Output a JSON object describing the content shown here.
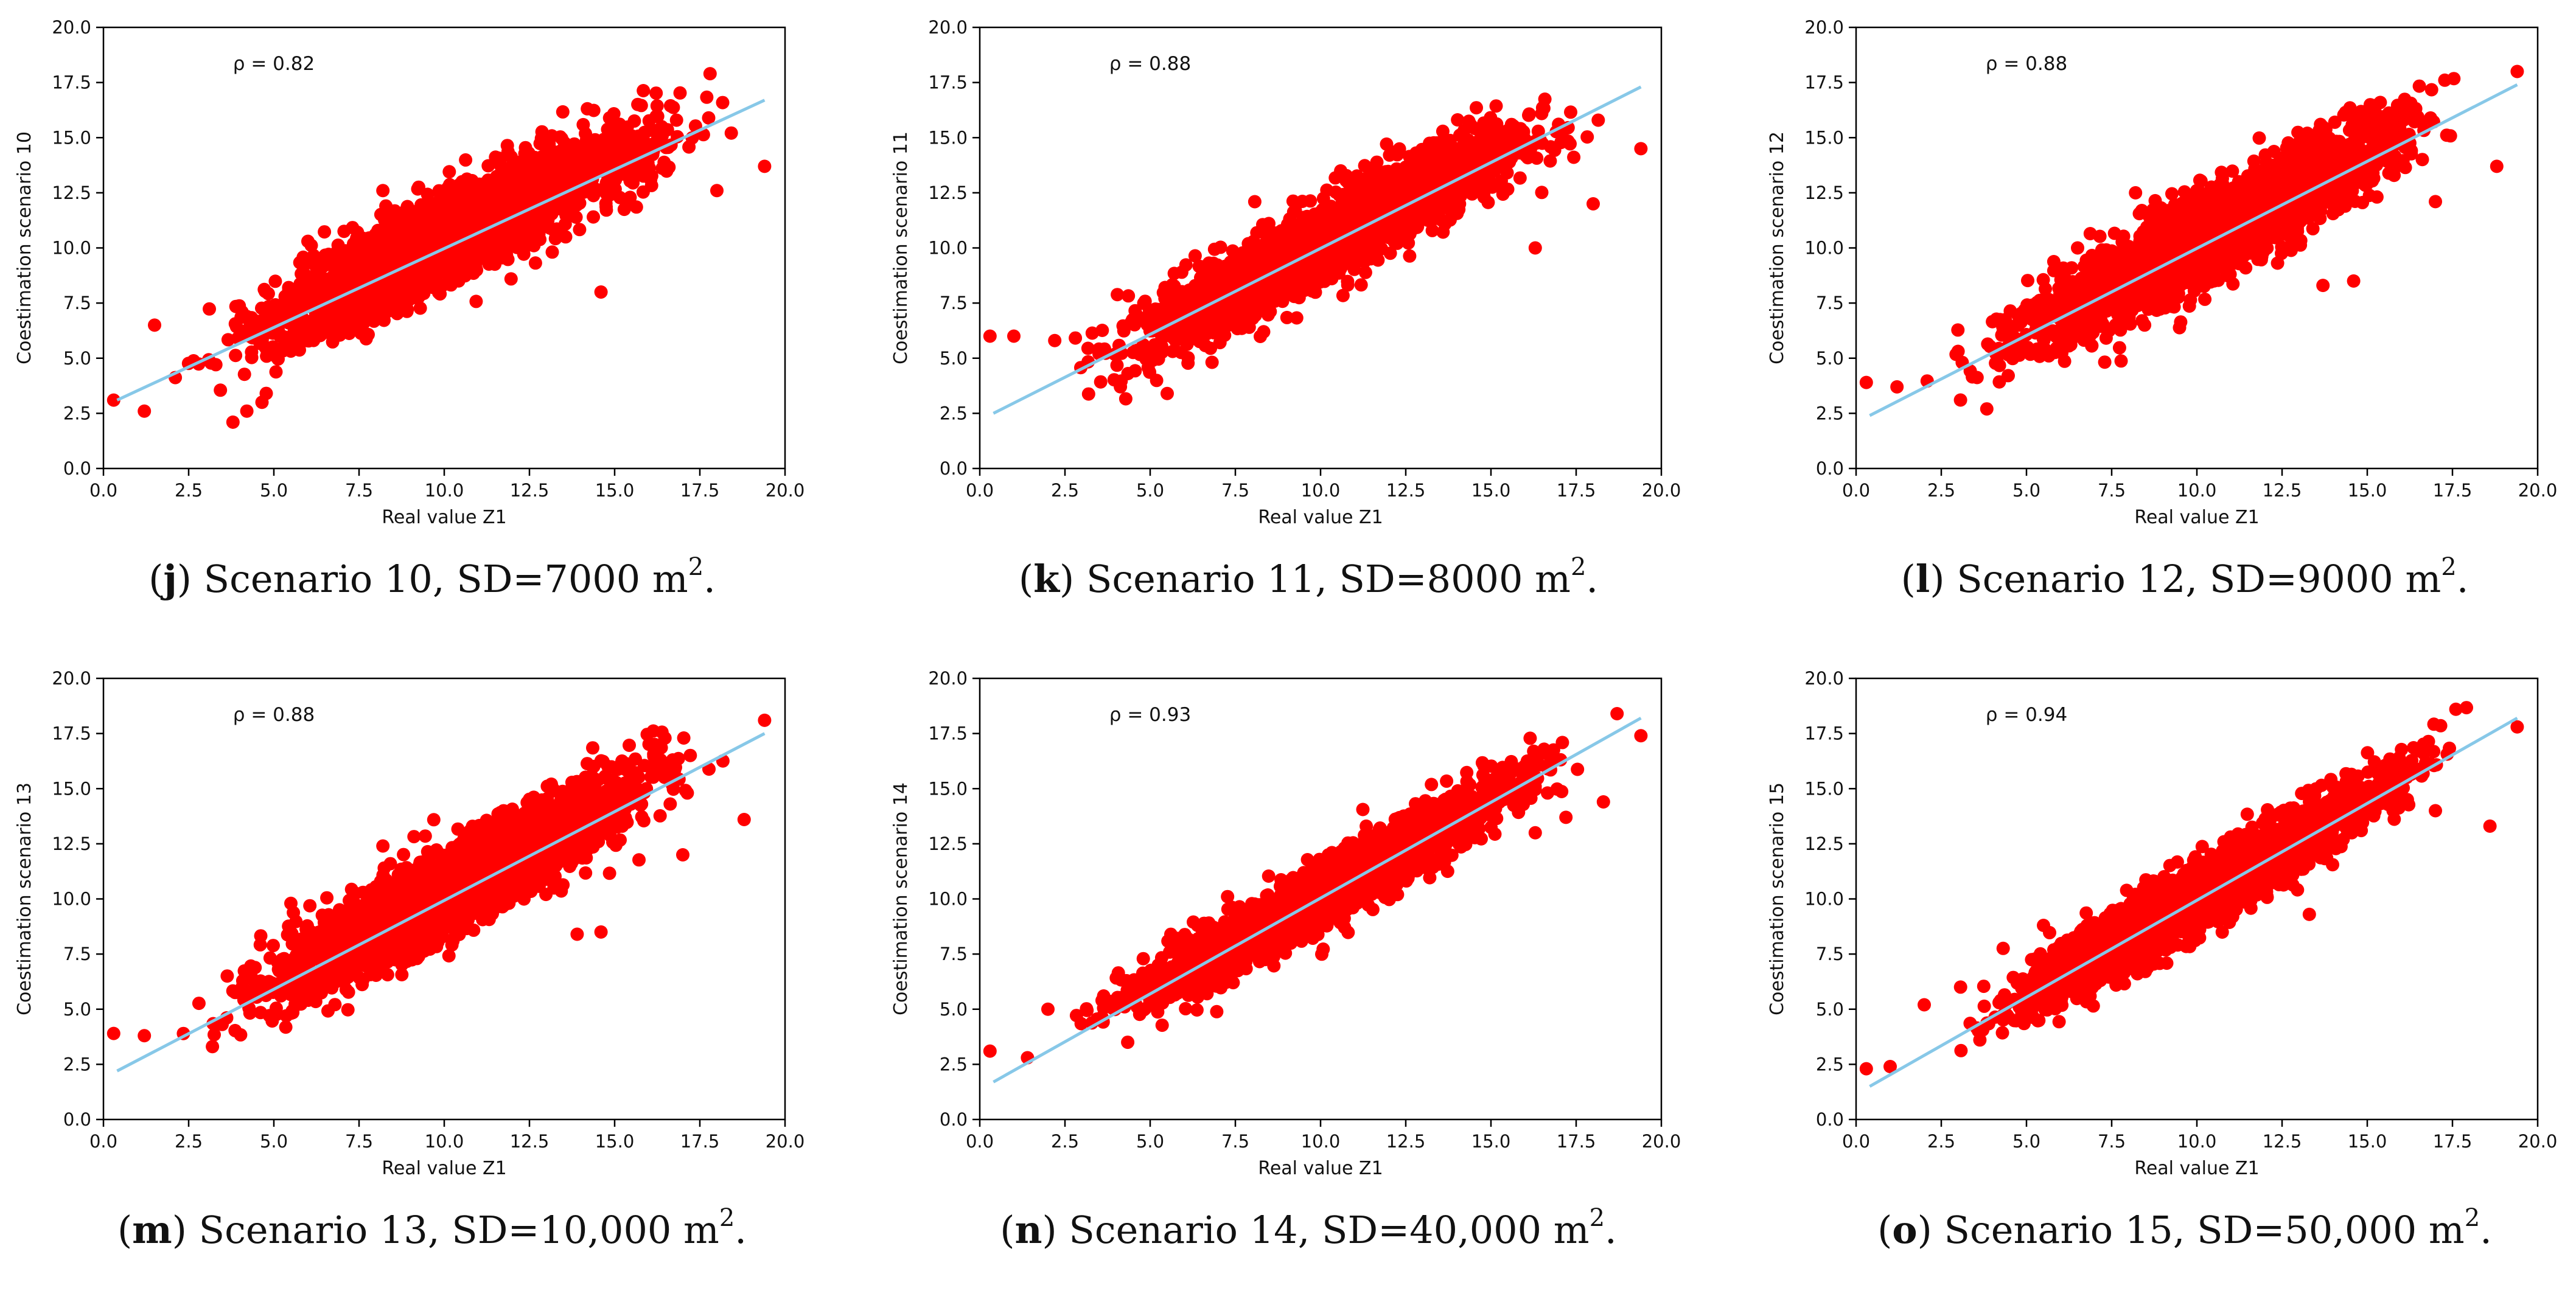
{
  "figure_type": "scatter_grid",
  "colors": {
    "points": "#ff0000",
    "fit_line": "#87c8e8",
    "axes": "#000000"
  },
  "chart_data": [
    {
      "id": "j",
      "type": "scatter",
      "scenario": 10,
      "rho": 0.82,
      "rho_text": "ρ = 0.82",
      "caption": {
        "letter": "j",
        "text_before": ") Scenario 10, SD=7000 m",
        "superscript": "2",
        "text_after": "."
      },
      "xlabel": "Real value Z1",
      "ylabel": "Coestimation scenario 10",
      "xlim": [
        0,
        20
      ],
      "ylim": [
        0,
        20
      ],
      "xticks": [
        "0.0",
        "2.5",
        "5.0",
        "7.5",
        "10.0",
        "12.5",
        "15.0",
        "17.5",
        "20.0"
      ],
      "yticks": [
        "0.0",
        "2.5",
        "5.0",
        "7.5",
        "10.0",
        "12.5",
        "15.0",
        "17.5",
        "20.0"
      ],
      "fit_line": {
        "x": [
          0.4,
          19.4
        ],
        "y": [
          3.1,
          16.7
        ]
      },
      "cloud": [
        [
          1.0,
          3.1
        ],
        [
          2.5,
          4.7
        ],
        [
          5.0,
          6.7
        ],
        [
          7.5,
          8.6
        ],
        [
          10.0,
          10.4
        ],
        [
          12.5,
          12.2
        ],
        [
          15.0,
          14.0
        ],
        [
          17.5,
          15.3
        ],
        [
          19.3,
          14.7
        ]
      ],
      "spread": 1.8,
      "outliers": [
        [
          0.3,
          3.1
        ],
        [
          1.2,
          2.6
        ],
        [
          1.5,
          6.5
        ],
        [
          3.8,
          2.1
        ],
        [
          8.2,
          12.6
        ],
        [
          14.6,
          8.0
        ],
        [
          17.8,
          17.9
        ],
        [
          19.4,
          13.7
        ],
        [
          18.0,
          12.6
        ],
        [
          6.0,
          10.3
        ]
      ]
    },
    {
      "id": "k",
      "type": "scatter",
      "scenario": 11,
      "rho": 0.88,
      "rho_text": "ρ = 0.88",
      "caption": {
        "letter": "k",
        "text_before": ") Scenario 11, SD=8000 m",
        "superscript": "2",
        "text_after": "."
      },
      "xlabel": "Real value Z1",
      "ylabel": "Coestimation scenario 11",
      "xlim": [
        0,
        20
      ],
      "ylim": [
        0,
        20
      ],
      "xticks": [
        "0.0",
        "2.5",
        "5.0",
        "7.5",
        "10.0",
        "12.5",
        "15.0",
        "17.5",
        "20.0"
      ],
      "yticks": [
        "0.0",
        "2.5",
        "5.0",
        "7.5",
        "10.0",
        "12.5",
        "15.0",
        "17.5",
        "20.0"
      ],
      "fit_line": {
        "x": [
          0.4,
          19.4
        ],
        "y": [
          2.5,
          17.3
        ]
      },
      "cloud": [
        [
          1.5,
          5.6
        ],
        [
          3.0,
          5.3
        ],
        [
          5.0,
          6.3
        ],
        [
          7.5,
          8.1
        ],
        [
          10.0,
          10.2
        ],
        [
          12.5,
          12.2
        ],
        [
          15.0,
          14.0
        ],
        [
          17.5,
          15.6
        ],
        [
          19.2,
          15.0
        ]
      ],
      "spread": 1.6,
      "outliers": [
        [
          0.3,
          6.0
        ],
        [
          1.0,
          6.0
        ],
        [
          2.2,
          5.8
        ],
        [
          3.5,
          5.2
        ],
        [
          19.4,
          14.5
        ],
        [
          16.3,
          10.0
        ],
        [
          18.0,
          12.0
        ],
        [
          5.5,
          3.4
        ]
      ]
    },
    {
      "id": "l",
      "type": "scatter",
      "scenario": 12,
      "rho": 0.88,
      "rho_text": "ρ = 0.88",
      "caption": {
        "letter": "l",
        "text_before": ") Scenario 12, SD=9000 m",
        "superscript": "2",
        "text_after": "."
      },
      "xlabel": "Real value Z1",
      "ylabel": "Coestimation scenario 12",
      "xlim": [
        0,
        20
      ],
      "ylim": [
        0,
        20
      ],
      "xticks": [
        "0.0",
        "2.5",
        "5.0",
        "7.5",
        "10.0",
        "12.5",
        "15.0",
        "17.5",
        "20.0"
      ],
      "yticks": [
        "0.0",
        "2.5",
        "5.0",
        "7.5",
        "10.0",
        "12.5",
        "15.0",
        "17.5",
        "20.0"
      ],
      "fit_line": {
        "x": [
          0.4,
          19.4
        ],
        "y": [
          2.4,
          17.4
        ]
      },
      "cloud": [
        [
          1.5,
          3.8
        ],
        [
          3.0,
          4.8
        ],
        [
          5.0,
          6.3
        ],
        [
          7.5,
          8.3
        ],
        [
          10.0,
          10.3
        ],
        [
          12.5,
          12.4
        ],
        [
          15.0,
          14.5
        ],
        [
          17.5,
          16.5
        ],
        [
          19.2,
          17.3
        ]
      ],
      "spread": 1.8,
      "outliers": [
        [
          0.3,
          3.9
        ],
        [
          1.2,
          3.7
        ],
        [
          8.2,
          12.5
        ],
        [
          14.6,
          8.5
        ],
        [
          13.7,
          8.3
        ],
        [
          19.4,
          18.0
        ],
        [
          18.8,
          13.7
        ],
        [
          17.0,
          12.1
        ],
        [
          6.5,
          10.0
        ]
      ]
    },
    {
      "id": "m",
      "type": "scatter",
      "scenario": 13,
      "rho": 0.88,
      "rho_text": "ρ = 0.88",
      "caption": {
        "letter": "m",
        "text_before": ") Scenario 13, SD=10,000 m",
        "superscript": "2",
        "text_after": "."
      },
      "xlabel": "Real value Z1",
      "ylabel": "Coestimation scenario 13",
      "xlim": [
        0,
        20
      ],
      "ylim": [
        0,
        20
      ],
      "xticks": [
        "0.0",
        "2.5",
        "5.0",
        "7.5",
        "10.0",
        "12.5",
        "15.0",
        "17.5",
        "20.0"
      ],
      "yticks": [
        "0.0",
        "2.5",
        "5.0",
        "7.5",
        "10.0",
        "12.5",
        "15.0",
        "17.5",
        "20.0"
      ],
      "fit_line": {
        "x": [
          0.4,
          19.4
        ],
        "y": [
          2.2,
          17.5
        ]
      },
      "cloud": [
        [
          1.5,
          3.9
        ],
        [
          3.0,
          4.8
        ],
        [
          5.0,
          6.2
        ],
        [
          7.5,
          8.2
        ],
        [
          10.0,
          10.2
        ],
        [
          12.5,
          12.3
        ],
        [
          15.0,
          14.5
        ],
        [
          17.5,
          16.5
        ],
        [
          19.2,
          17.4
        ]
      ],
      "spread": 1.8,
      "outliers": [
        [
          0.3,
          3.9
        ],
        [
          1.2,
          3.8
        ],
        [
          8.2,
          12.4
        ],
        [
          14.6,
          8.5
        ],
        [
          13.9,
          8.4
        ],
        [
          19.4,
          18.1
        ],
        [
          18.8,
          13.6
        ],
        [
          17.0,
          12.0
        ],
        [
          5.5,
          9.8
        ]
      ]
    },
    {
      "id": "n",
      "type": "scatter",
      "scenario": 14,
      "rho": 0.93,
      "rho_text": "ρ = 0.93",
      "caption": {
        "letter": "n",
        "text_before": ") Scenario 14, SD=40,000 m",
        "superscript": "2",
        "text_after": "."
      },
      "xlabel": "Real value Z1",
      "ylabel": "Coestimation scenario 14",
      "xlim": [
        0,
        20
      ],
      "ylim": [
        0,
        20
      ],
      "xticks": [
        "0.0",
        "2.5",
        "5.0",
        "7.5",
        "10.0",
        "12.5",
        "15.0",
        "17.5",
        "20.0"
      ],
      "yticks": [
        "0.0",
        "2.5",
        "5.0",
        "7.5",
        "10.0",
        "12.5",
        "15.0",
        "17.5",
        "20.0"
      ],
      "fit_line": {
        "x": [
          0.4,
          19.4
        ],
        "y": [
          1.7,
          18.2
        ]
      },
      "cloud": [
        [
          1.5,
          3.3
        ],
        [
          3.0,
          4.2
        ],
        [
          5.0,
          5.9
        ],
        [
          7.5,
          8.0
        ],
        [
          10.0,
          10.2
        ],
        [
          12.5,
          12.4
        ],
        [
          15.0,
          14.6
        ],
        [
          17.5,
          16.7
        ],
        [
          19.2,
          17.6
        ]
      ],
      "spread": 1.3,
      "outliers": [
        [
          0.3,
          3.1
        ],
        [
          1.4,
          2.8
        ],
        [
          2.0,
          5.0
        ],
        [
          19.4,
          17.4
        ],
        [
          18.7,
          18.4
        ],
        [
          18.3,
          14.4
        ],
        [
          17.2,
          13.7
        ],
        [
          16.3,
          13.0
        ],
        [
          6.0,
          7.6
        ]
      ]
    },
    {
      "id": "o",
      "type": "scatter",
      "scenario": 15,
      "rho": 0.94,
      "rho_text": "ρ = 0.94",
      "caption": {
        "letter": "o",
        "text_before": ") Scenario 15, SD=50,000 m",
        "superscript": "2",
        "text_after": "."
      },
      "xlabel": "Real value Z1",
      "ylabel": "Coestimation scenario 15",
      "xlim": [
        0,
        20
      ],
      "ylim": [
        0,
        20
      ],
      "xticks": [
        "0.0",
        "2.5",
        "5.0",
        "7.5",
        "10.0",
        "12.5",
        "15.0",
        "17.5",
        "20.0"
      ],
      "yticks": [
        "0.0",
        "2.5",
        "5.0",
        "7.5",
        "10.0",
        "12.5",
        "15.0",
        "17.5",
        "20.0"
      ],
      "fit_line": {
        "x": [
          0.4,
          19.4
        ],
        "y": [
          1.5,
          18.2
        ]
      },
      "cloud": [
        [
          1.5,
          2.6
        ],
        [
          3.0,
          3.8
        ],
        [
          5.0,
          5.7
        ],
        [
          7.5,
          7.9
        ],
        [
          10.0,
          10.1
        ],
        [
          12.5,
          12.3
        ],
        [
          15.0,
          14.6
        ],
        [
          17.5,
          16.8
        ],
        [
          19.2,
          17.7
        ]
      ],
      "spread": 1.4,
      "outliers": [
        [
          0.3,
          2.3
        ],
        [
          1.0,
          2.4
        ],
        [
          2.0,
          5.2
        ],
        [
          17.6,
          18.6
        ],
        [
          19.4,
          17.8
        ],
        [
          18.6,
          13.3
        ],
        [
          17.0,
          14.0
        ],
        [
          13.3,
          9.3
        ],
        [
          5.5,
          8.8
        ]
      ]
    }
  ]
}
